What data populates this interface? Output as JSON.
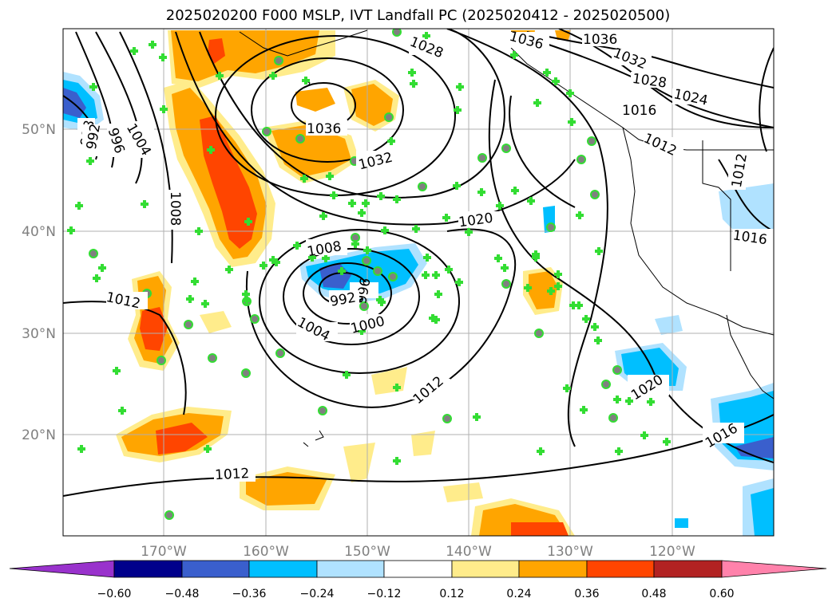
{
  "title": "2025020200 F000 MSLP, IVT Landfall PC (2025020412 - 2025020500)",
  "lon_labels": [
    "170°W",
    "160°W",
    "150°W",
    "140°W",
    "130°W",
    "120°W"
  ],
  "lat_labels": [
    "50°N",
    "40°N",
    "30°N",
    "20°N"
  ],
  "isobar_labels": [
    "1028",
    "1036",
    "1036",
    "1032",
    "1028",
    "1024",
    "1016",
    "1012",
    "1012",
    "1036",
    "1032",
    "988",
    "992",
    "996",
    "1004",
    "1008",
    "1020",
    "1008",
    "996",
    "992",
    "1000",
    "1004",
    "1012",
    "1012",
    "1012",
    "1020",
    "1016",
    "1016"
  ],
  "colorbar": {
    "ticks": [
      "−0.60",
      "−0.48",
      "−0.36",
      "−0.24",
      "−0.12",
      "0.12",
      "0.24",
      "0.36",
      "0.48",
      "0.60"
    ],
    "colors": [
      "#9932cc",
      "#00008b",
      "#3a5fcd",
      "#00bfff",
      "#b0e2ff",
      "#ffffff",
      "#ffec8b",
      "#ffa500",
      "#ff4500",
      "#b22222",
      "#ff82ab"
    ]
  },
  "colors": {
    "grid": "#b0b0b0",
    "isobar": "#000000",
    "marker_green": "#33dd33",
    "marker_gray": "#808080"
  }
}
